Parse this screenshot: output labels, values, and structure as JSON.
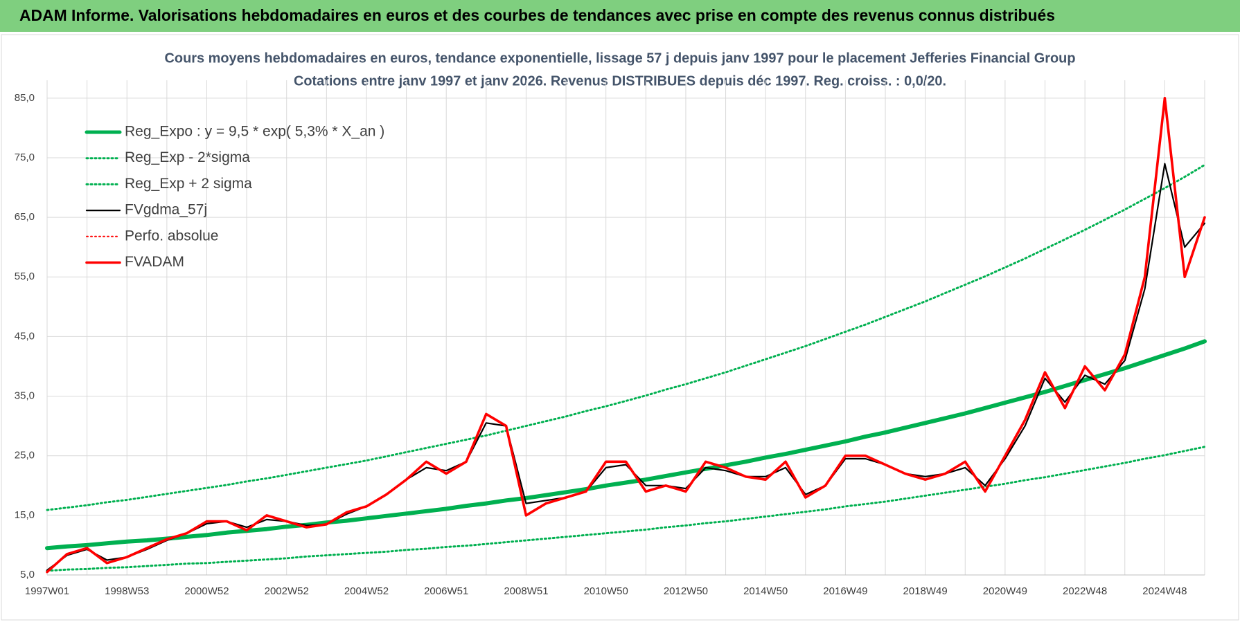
{
  "header": {
    "title": "ADAM Informe. Valorisations hebdomadaires en euros et des courbes de tendances avec prise en compte des revenus connus distribués"
  },
  "chart_data": {
    "type": "line",
    "title": "Cours moyens hebdomadaires en euros, tendance exponentielle, lissage 57 j depuis janv 1997  pour le placement Jefferies Financial Group",
    "subtitle": "Cotations entre janv 1997 et janv 2026. Revenus DISTRIBUES depuis déc 1997. Reg. croiss. : 0,0/20.",
    "categories": [
      "1997W01",
      null,
      null,
      null,
      "1998W53",
      null,
      null,
      null,
      "2000W52",
      null,
      null,
      null,
      "2002W52",
      null,
      null,
      null,
      "2004W52",
      null,
      null,
      null,
      "2006W51",
      null,
      null,
      null,
      "2008W51",
      null,
      null,
      null,
      "2010W50",
      null,
      null,
      null,
      "2012W50",
      null,
      null,
      null,
      "2014W50",
      null,
      null,
      null,
      "2016W49",
      null,
      null,
      null,
      "2018W49",
      null,
      null,
      null,
      "2020W49",
      null,
      null,
      null,
      "2022W48",
      null,
      null,
      null,
      "2024W48",
      null,
      null
    ],
    "ylim": [
      5,
      88
    ],
    "yticks": [
      {
        "value": 5,
        "label": "5,0"
      },
      {
        "value": 15,
        "label": "15,0"
      },
      {
        "value": 25,
        "label": "25,0"
      },
      {
        "value": 35,
        "label": "35,0"
      },
      {
        "value": 45,
        "label": "45,0"
      },
      {
        "value": 55,
        "label": "55,0"
      },
      {
        "value": 65,
        "label": "65,0"
      },
      {
        "value": 75,
        "label": "75,0"
      },
      {
        "value": 85,
        "label": "85,0"
      }
    ],
    "grid": true,
    "legend": "top-left",
    "series": [
      {
        "name": "Reg_Expo : y = 9,5 * exp( 5,3% *  X_an )",
        "color": "#00b050",
        "style": "solid",
        "values": [
          9.5,
          9.8,
          10.0,
          10.3,
          10.6,
          10.8,
          11.1,
          11.4,
          11.7,
          12.1,
          12.4,
          12.7,
          13.1,
          13.4,
          13.8,
          14.1,
          14.5,
          14.9,
          15.3,
          15.7,
          16.1,
          16.6,
          17.0,
          17.5,
          17.9,
          18.4,
          18.9,
          19.4,
          20.0,
          20.5,
          21.0,
          21.6,
          22.2,
          22.8,
          23.4,
          24.0,
          24.7,
          25.3,
          26.0,
          26.7,
          27.4,
          28.2,
          28.9,
          29.7,
          30.5,
          31.3,
          32.1,
          33.0,
          33.9,
          34.8,
          35.7,
          36.7,
          37.7,
          38.7,
          39.7,
          40.8,
          41.9,
          43.0,
          44.2
        ]
      },
      {
        "name": "Reg_Exp - 2*sigma",
        "color": "#00b050",
        "style": "dotted",
        "values": [
          5.7,
          5.9,
          6.0,
          6.2,
          6.3,
          6.5,
          6.7,
          6.9,
          7.0,
          7.2,
          7.4,
          7.6,
          7.8,
          8.1,
          8.3,
          8.5,
          8.7,
          8.9,
          9.2,
          9.4,
          9.7,
          9.9,
          10.2,
          10.5,
          10.8,
          11.1,
          11.4,
          11.7,
          12.0,
          12.3,
          12.6,
          13.0,
          13.3,
          13.7,
          14.0,
          14.4,
          14.8,
          15.2,
          15.6,
          16.0,
          16.5,
          16.9,
          17.3,
          17.8,
          18.3,
          18.8,
          19.3,
          19.8,
          20.3,
          20.9,
          21.4,
          22.0,
          22.6,
          23.2,
          23.8,
          24.5,
          25.1,
          25.8,
          26.5
        ]
      },
      {
        "name": "Reg_Exp + 2 sigma",
        "color": "#00b050",
        "style": "dotted",
        "values": [
          15.9,
          16.3,
          16.7,
          17.2,
          17.6,
          18.1,
          18.6,
          19.1,
          19.6,
          20.1,
          20.7,
          21.2,
          21.8,
          22.4,
          23.0,
          23.6,
          24.2,
          24.9,
          25.6,
          26.3,
          27.0,
          27.7,
          28.4,
          29.2,
          30.0,
          30.8,
          31.6,
          32.5,
          33.3,
          34.2,
          35.1,
          36.1,
          37.0,
          38.0,
          39.0,
          40.1,
          41.2,
          42.3,
          43.4,
          44.6,
          45.8,
          47.0,
          48.3,
          49.6,
          50.9,
          52.3,
          53.7,
          55.1,
          56.6,
          58.1,
          59.7,
          61.3,
          62.9,
          64.6,
          66.3,
          68.1,
          69.9,
          71.8,
          73.8
        ]
      },
      {
        "name": "FVgdma_57j",
        "color": "#000000",
        "style": "solid",
        "values": [
          5.8,
          8.3,
          9.3,
          7.5,
          8.0,
          9.3,
          10.8,
          12.0,
          13.6,
          14.0,
          13.0,
          14.3,
          14.0,
          13.3,
          13.5,
          15.2,
          16.5,
          18.5,
          21.0,
          23.0,
          22.5,
          24.0,
          30.5,
          30.0,
          17.0,
          17.5,
          18.0,
          19.0,
          23.0,
          23.5,
          20.0,
          20.0,
          19.5,
          23.0,
          22.5,
          21.5,
          21.5,
          23.0,
          18.5,
          20.0,
          24.5,
          24.5,
          23.5,
          22.0,
          21.5,
          22.0,
          23.0,
          20.0,
          24.5,
          30.0,
          38.0,
          34.0,
          38.5,
          37.0,
          41.0,
          53.0,
          74.0,
          60.0,
          64.0
        ]
      },
      {
        "name": "Perfo. absolue",
        "color": "#ff0000",
        "style": "dotted",
        "values": [
          null,
          null,
          null,
          null,
          null,
          null,
          null,
          null,
          null,
          null,
          null,
          null,
          null,
          null,
          null,
          null,
          null,
          null,
          null,
          null,
          null,
          null,
          null,
          null,
          null,
          null,
          null,
          null,
          null,
          null,
          null,
          null,
          null,
          null,
          null,
          null,
          null,
          null,
          null,
          null,
          null,
          null,
          null,
          null,
          null,
          null,
          null,
          null,
          null,
          null,
          null,
          null,
          null,
          null,
          null,
          null,
          null,
          null,
          null
        ]
      },
      {
        "name": "FVADAM",
        "color": "#ff0000",
        "style": "solid",
        "values": [
          5.5,
          8.5,
          9.5,
          7.0,
          8.0,
          9.5,
          11.0,
          12.0,
          14.0,
          14.0,
          12.5,
          15.0,
          14.0,
          13.0,
          13.5,
          15.5,
          16.5,
          18.5,
          21.0,
          24.0,
          22.0,
          24.0,
          32.0,
          30.0,
          15.0,
          17.0,
          18.0,
          19.0,
          24.0,
          24.0,
          19.0,
          20.0,
          19.0,
          24.0,
          23.0,
          21.5,
          21.0,
          24.0,
          18.0,
          20.0,
          25.0,
          25.0,
          23.5,
          22.0,
          21.0,
          22.0,
          24.0,
          19.0,
          25.0,
          31.0,
          39.0,
          33.0,
          40.0,
          36.0,
          42.0,
          55.0,
          85.0,
          55.0,
          65.0
        ]
      }
    ]
  }
}
